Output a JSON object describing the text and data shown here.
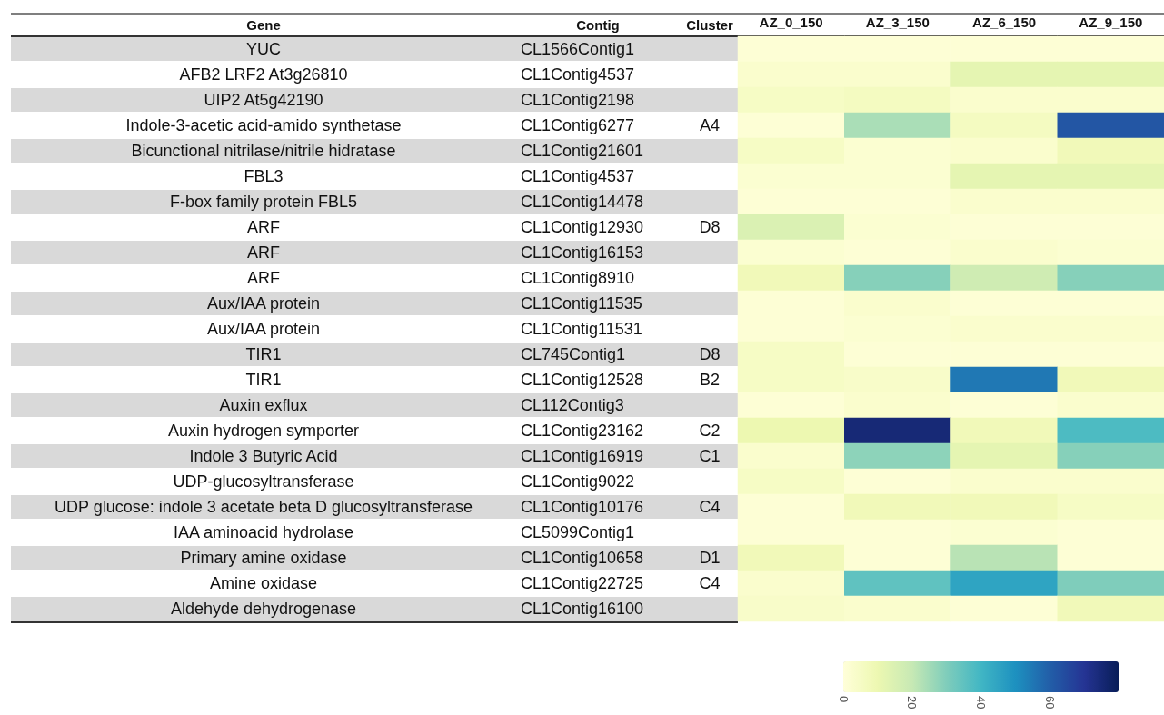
{
  "chart_data": {
    "type": "heatmap",
    "ylabel": "Contig",
    "y2label": "Cluster",
    "categories": [
      "AZ_0_150",
      "AZ_3_150",
      "AZ_6_150",
      "AZ_9_150"
    ],
    "y_categories": [
      "CL1566Contig1",
      "CL1Contig4537",
      "CL1Contig2198",
      "CL1Contig6277",
      "CL1Contig21601",
      "CL1Contig4537",
      "CL1Contig14478",
      "CL1Contig12930",
      "CL1Contig16153",
      "CL1Contig8910",
      "CL1Contig11535",
      "CL1Contig11531",
      "CL745Contig1",
      "CL1Contig12528",
      "CL112Contig3",
      "CL1Contig23162",
      "CL1Contig16919",
      "CL1Contig9022",
      "CL1Contig10176",
      "CL5099Contig1",
      "CL1Contig10658",
      "CL1Contig22725",
      "CL1Contig16100"
    ],
    "y2_categories": [
      null,
      null,
      null,
      "A4",
      null,
      null,
      null,
      "D8",
      null,
      null,
      null,
      null,
      "D8",
      "B2",
      null,
      "C2",
      "C1",
      null,
      "C4",
      null,
      "D1",
      "C4",
      null
    ],
    "cells": [
      [
        1,
        1,
        1,
        1
      ],
      [
        3,
        3,
        12,
        12
      ],
      [
        5,
        6,
        3,
        3
      ],
      [
        1,
        24,
        6,
        62
      ],
      [
        5,
        2,
        3,
        8
      ],
      [
        2,
        2,
        12,
        12
      ],
      [
        1,
        1,
        3,
        3
      ],
      [
        15,
        2,
        1,
        1
      ],
      [
        2,
        1,
        3,
        2
      ],
      [
        8,
        29,
        18,
        29
      ],
      [
        1,
        3,
        1,
        1
      ],
      [
        1,
        2,
        3,
        3
      ],
      [
        5,
        1,
        1,
        1
      ],
      [
        5,
        4,
        55,
        8
      ],
      [
        1,
        3,
        1,
        3
      ],
      [
        10,
        75,
        8,
        38
      ],
      [
        3,
        28,
        12,
        29
      ],
      [
        5,
        1,
        3,
        3
      ],
      [
        1,
        8,
        8,
        5
      ],
      [
        1,
        1,
        2,
        1
      ],
      [
        8,
        1,
        22,
        1
      ],
      [
        3,
        35,
        45,
        30
      ],
      [
        4,
        3,
        1,
        8
      ]
    ],
    "clim": [
      0,
      80
    ],
    "cticks": [
      0,
      20,
      40,
      60
    ],
    "annotations": [
      "Gene",
      "YUC",
      "AFB2 LRF2 At3g26810",
      "UIP2 At5g42190",
      "Indole-3-acetic acid-amido synthetase",
      "Bicunctional nitrilase/nitrile hidratase",
      "FBL3",
      "F-box family protein FBL5",
      "ARF",
      "ARF",
      "ARF",
      "Aux/IAA protein",
      "Aux/IAA protein",
      "TIR1",
      "TIR1",
      "Auxin exflux",
      "Auxin hydrogen symporter",
      "Indole 3 Butyric Acid",
      "UDP-glucosyltransferase",
      "UDP glucose: indole 3 acetate beta D glucosyltransferase",
      "IAA aminoacid hydrolase",
      "Primary amine oxidase",
      "Amine oxidase",
      "Aldehyde dehydrogenase"
    ]
  }
}
